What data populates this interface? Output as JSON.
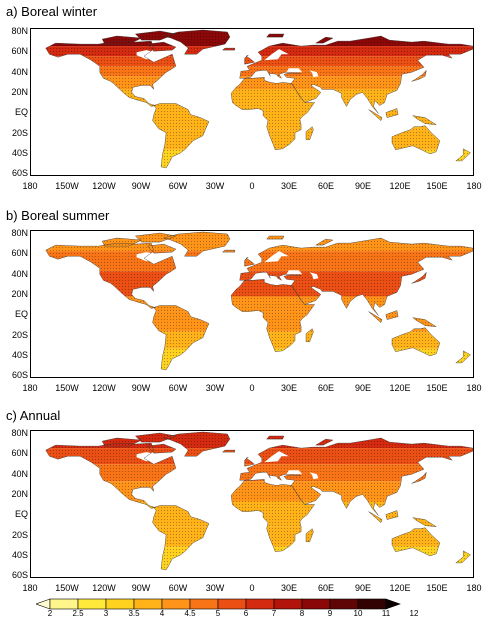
{
  "panels": [
    {
      "id": "a",
      "title": "a) Boreal winter",
      "scheme": "winter"
    },
    {
      "id": "b",
      "title": "b) Boreal summer",
      "scheme": "summer"
    },
    {
      "id": "c",
      "title": "c) Annual",
      "scheme": "annual"
    }
  ],
  "lat_labels": [
    "80N",
    "60N",
    "40N",
    "20N",
    "EQ",
    "20S",
    "40S",
    "60S"
  ],
  "lon_labels": [
    "180",
    "150W",
    "120W",
    "90W",
    "60W",
    "30W",
    "0",
    "30E",
    "60E",
    "90E",
    "120E",
    "150E",
    "180"
  ],
  "colorbar": {
    "ticks": [
      "2",
      "2.5",
      "3",
      "3.5",
      "4",
      "4.5",
      "5",
      "6",
      "7",
      "8",
      "9",
      "10",
      "11",
      "12"
    ],
    "colors": [
      "#fffbd0",
      "#fff58a",
      "#ffe93a",
      "#ffd21f",
      "#ffb319",
      "#ff9418",
      "#f97416",
      "#eb4f14",
      "#d32a10",
      "#b2140c",
      "#8a0908",
      "#5f0505",
      "#320202",
      "#0c0000"
    ]
  }
}
